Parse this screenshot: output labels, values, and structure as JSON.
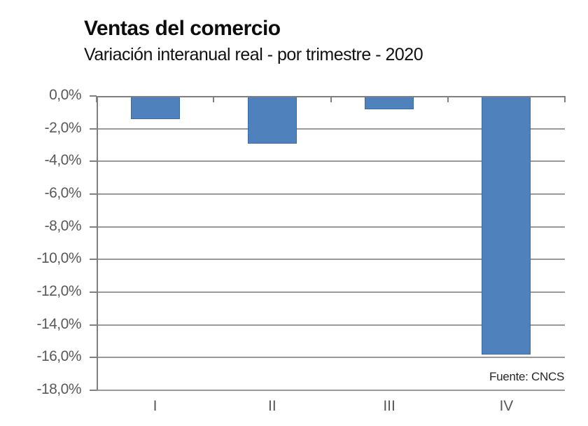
{
  "header": {
    "title": "Ventas del comercio",
    "subtitle": "Variación interanual real - por trimestre - 2020"
  },
  "source_note": "Fuente: CNCS",
  "colors": {
    "bar_fill": "#4f81bd",
    "bar_border": "#3c6ca8",
    "gridline": "#999999",
    "axis": "#808080",
    "label": "#595959",
    "title_text": "#0d0d0d"
  },
  "chart_data": {
    "type": "bar",
    "title": "Ventas del comercio",
    "subtitle": "Variación interanual real - por trimestre - 2020",
    "categories": [
      "I",
      "II",
      "III",
      "IV"
    ],
    "values": [
      -1.4,
      -2.9,
      -0.8,
      -15.8
    ],
    "unit": "%",
    "xlabel": "",
    "ylabel": "",
    "ylim": [
      -18,
      0
    ],
    "ytick_step": 2,
    "ytick_labels": [
      "0,0%",
      "-2,0%",
      "-4,0%",
      "-6,0%",
      "-8,0%",
      "-10,0%",
      "-12,0%",
      "-14,0%",
      "-16,0%",
      "-18,0%"
    ],
    "grid": true,
    "legend": false,
    "source": "Fuente: CNCS"
  }
}
